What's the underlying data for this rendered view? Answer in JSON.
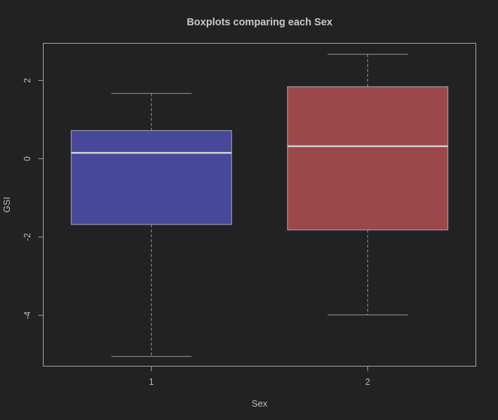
{
  "chart_data": {
    "type": "boxplot",
    "title": "Boxplots comparing each Sex",
    "xlabel": "Sex",
    "ylabel": "GSI",
    "categories": [
      "1",
      "2"
    ],
    "y_ticks": [
      "-4",
      "-2",
      "0",
      "2"
    ],
    "ylim": [
      -5.3,
      2.95
    ],
    "boxes": [
      {
        "category": "1",
        "whisker_low": -5.05,
        "q1": -1.68,
        "median": 0.15,
        "q3": 0.72,
        "whisker_high": 1.67,
        "color": "#48489a"
      },
      {
        "category": "2",
        "whisker_low": -3.99,
        "q1": -1.82,
        "median": 0.32,
        "q3": 1.84,
        "whisker_high": 2.67,
        "color": "#9c484b"
      }
    ],
    "grid": false,
    "legend": "none"
  }
}
